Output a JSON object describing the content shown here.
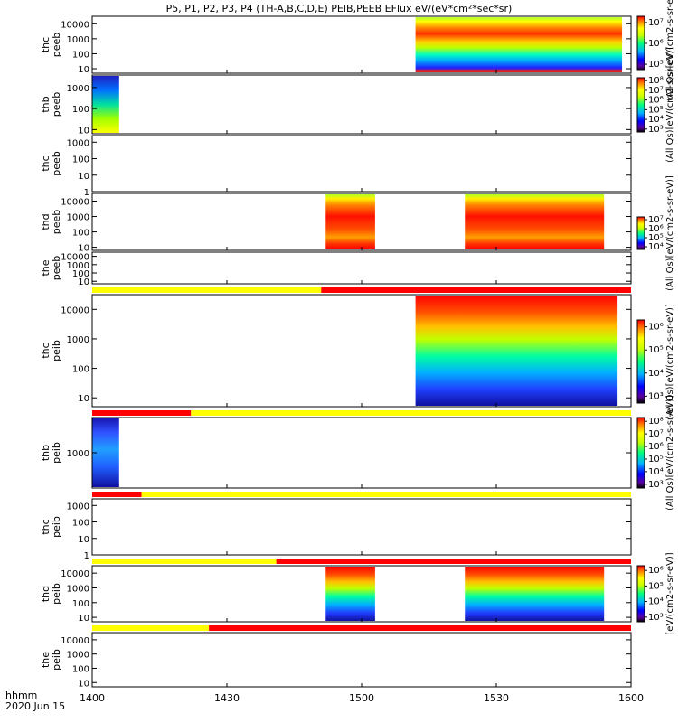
{
  "chart_data": {
    "type": "heatmap",
    "title": "P5, P1, P2, P3, P4 (TH-A,B,C,D,E) PEIB,PEEB EFlux eV/(eV*cm²*sec*sr)",
    "x_label_left": "hhmm",
    "date_label": "2020 Jun 15",
    "x_ticks": [
      "1400",
      "1430",
      "1500",
      "1530",
      "1600"
    ],
    "x_range_minutes": [
      0,
      120
    ],
    "colors": {
      "flag_yellow": "#ffff00",
      "flag_red": "#ff0000",
      "background": "#ffffff"
    },
    "panels": [
      {
        "probe": "thc",
        "instrument": "peeb",
        "y_ticks": [
          "10",
          "100",
          "1000",
          "10000"
        ],
        "y_log_range": [
          0.7,
          4.5
        ],
        "colorbar": {
          "ticks": [
            "10⁵",
            "10⁶",
            "10⁷"
          ],
          "label": "(All Qs)[eV/(cm2-s-sr-eV)]"
        },
        "data_intervals": [
          [
            "1512",
            "1558"
          ]
        ]
      },
      {
        "probe": "thb",
        "instrument": "peeb",
        "y_ticks": [
          "10",
          "100",
          "1000"
        ],
        "y_log_range": [
          0.8,
          3.6
        ],
        "colorbar": {
          "ticks": [
            "10³",
            "10⁴",
            "10⁵",
            "10⁶",
            "10⁷",
            "10⁸"
          ],
          "label": "(All Qs)[eV/(cm2-s-sr-eV)]"
        },
        "data_intervals": [
          [
            "1400",
            "1406"
          ]
        ]
      },
      {
        "probe": "thc",
        "instrument": "peeb",
        "y_ticks": [
          "1",
          "10",
          "100",
          "1000"
        ],
        "y_log_range": [
          0,
          3.4
        ],
        "colorbar": null,
        "data_intervals": []
      },
      {
        "probe": "thd",
        "instrument": "peeb",
        "y_ticks": [
          "10",
          "100",
          "1000",
          "10000"
        ],
        "y_log_range": [
          0.8,
          4.5
        ],
        "colorbar": {
          "ticks": [
            "10⁴",
            "10⁵",
            "10⁶",
            "10⁷"
          ],
          "label": "(All Qs)[eV/(cm2-s-sr-eV)]"
        },
        "data_intervals": [
          [
            "1452",
            "1503"
          ],
          [
            "1523",
            "1554"
          ]
        ]
      },
      {
        "probe": "the",
        "instrument": "peeb",
        "y_ticks": [
          "10",
          "100",
          "1000",
          "10000"
        ],
        "y_log_range": [
          0.7,
          4.5
        ],
        "colorbar": null,
        "data_intervals": []
      },
      {
        "probe": "thc",
        "instrument": "peib",
        "y_ticks": [
          "10",
          "100",
          "1000",
          "10000"
        ],
        "y_log_range": [
          0.7,
          4.5
        ],
        "colorbar": {
          "ticks": [
            "10³",
            "10⁴",
            "10⁵",
            "10⁶"
          ],
          "label": "(All Qs)[eV/(cm2-s-sr-eV)]"
        },
        "data_intervals": [
          [
            "1512",
            "1557"
          ]
        ]
      },
      {
        "probe": "thb",
        "instrument": "peib",
        "y_ticks": [
          "1000"
        ],
        "y_log_range": [
          2.0,
          4.0
        ],
        "colorbar": {
          "ticks": [
            "10³",
            "10⁴",
            "10⁵",
            "10⁶",
            "10⁷",
            "10⁸"
          ],
          "label": "(All Qs)[eV/(cm2-s-sr-eV)]"
        },
        "data_intervals": [
          [
            "1400",
            "1406"
          ]
        ]
      },
      {
        "probe": "thc",
        "instrument": "peib",
        "y_ticks": [
          "1",
          "10",
          "100",
          "1000"
        ],
        "y_log_range": [
          0,
          3.4
        ],
        "colorbar": null,
        "data_intervals": []
      },
      {
        "probe": "thd",
        "instrument": "peib",
        "y_ticks": [
          "10",
          "100",
          "1000",
          "10000"
        ],
        "y_log_range": [
          0.7,
          4.5
        ],
        "colorbar": {
          "ticks": [
            "10³",
            "10⁴",
            "10⁵",
            "10⁶"
          ],
          "label": "[eV/(cm2-s-sr-eV)]"
        },
        "data_intervals": [
          [
            "1452",
            "1503"
          ],
          [
            "1523",
            "1554"
          ]
        ]
      },
      {
        "probe": "the",
        "instrument": "peib",
        "y_ticks": [
          "10",
          "100",
          "1000",
          "10000"
        ],
        "y_log_range": [
          0.7,
          4.5
        ],
        "colorbar": null,
        "data_intervals": []
      }
    ],
    "flag_bars": [
      {
        "segments": [
          {
            "color": "yellow",
            "from": "1400",
            "to": "1451"
          },
          {
            "color": "red",
            "from": "1451",
            "to": "1600"
          }
        ]
      },
      {
        "segments": [
          {
            "color": "red",
            "from": "1400",
            "to": "1422"
          },
          {
            "color": "yellow",
            "from": "1422",
            "to": "1600"
          }
        ]
      },
      {
        "segments": [
          {
            "color": "red",
            "from": "1400",
            "to": "1411"
          },
          {
            "color": "yellow",
            "from": "1411",
            "to": "1600"
          }
        ]
      },
      {
        "segments": [
          {
            "color": "yellow",
            "from": "1400",
            "to": "1441"
          },
          {
            "color": "red",
            "from": "1441",
            "to": "1600"
          }
        ]
      },
      {
        "segments": [
          {
            "color": "yellow",
            "from": "1400",
            "to": "1426"
          },
          {
            "color": "red",
            "from": "1426",
            "to": "1600"
          }
        ]
      }
    ]
  }
}
